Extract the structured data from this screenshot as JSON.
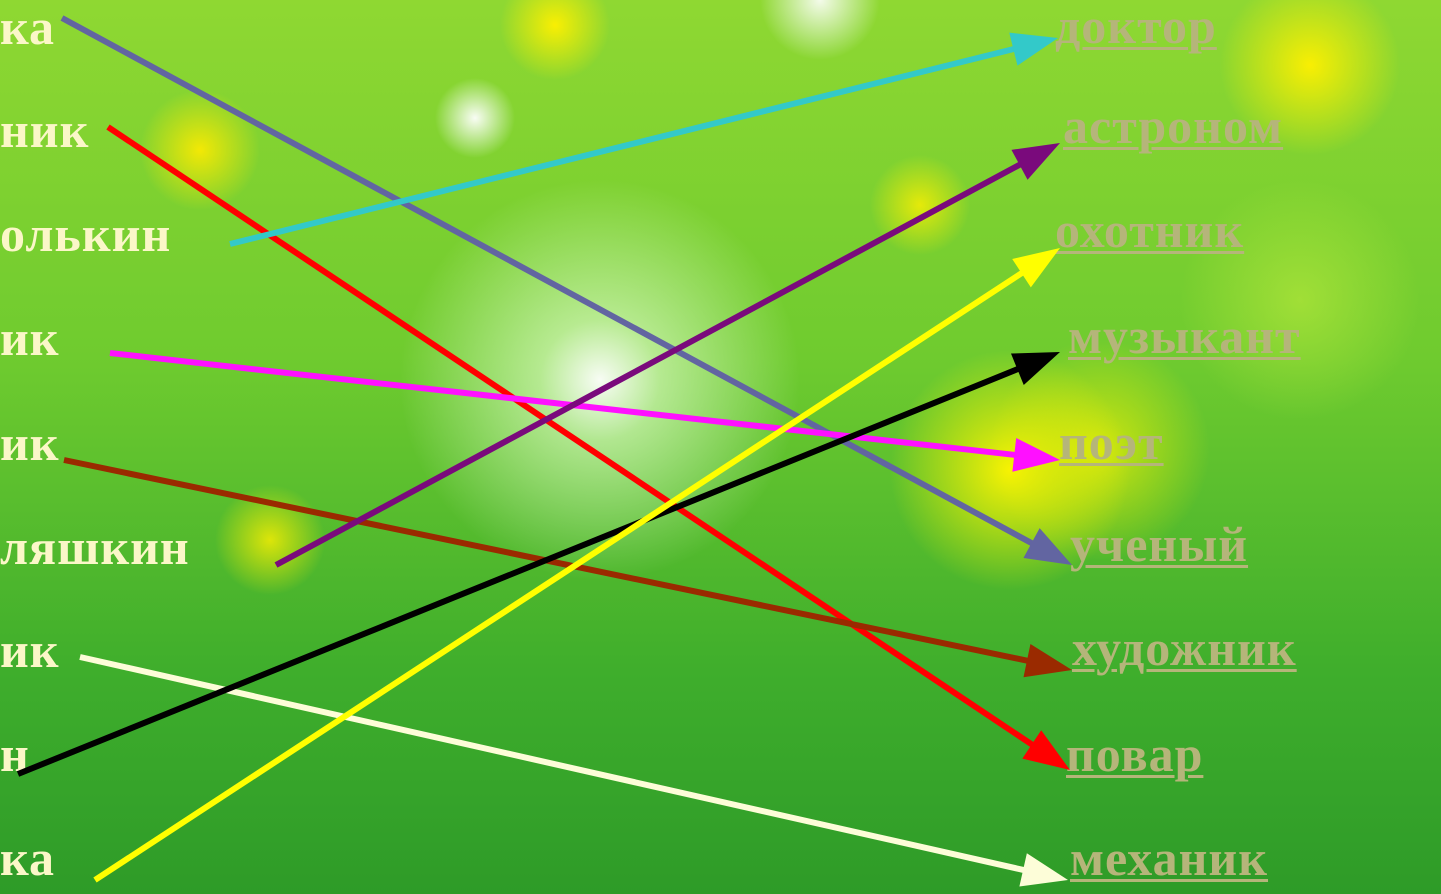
{
  "left_labels": [
    "ка",
    "ник",
    "олькин",
    "ик",
    "ик",
    "ляшкин",
    "ик",
    "н",
    "ка"
  ],
  "right_links": [
    "доктор",
    "астроном",
    "охотник",
    "музыкант",
    "поэт",
    "ученый",
    "художник",
    "повар",
    "механик"
  ],
  "connectors": [
    {
      "from": 0,
      "to": 5,
      "color": "#6265a1"
    },
    {
      "from": 1,
      "to": 7,
      "color": "#ff0000"
    },
    {
      "from": 2,
      "to": 0,
      "color": "#33c9c9"
    },
    {
      "from": 3,
      "to": 4,
      "color": "#ff10ff"
    },
    {
      "from": 4,
      "to": 6,
      "color": "#9a2a00"
    },
    {
      "from": 5,
      "to": 1,
      "color": "#7a0a7c"
    },
    {
      "from": 6,
      "to": 8,
      "color": "#fdfdd8"
    },
    {
      "from": 7,
      "to": 3,
      "color": "#000000"
    },
    {
      "from": 8,
      "to": 2,
      "color": "#ffff00"
    }
  ]
}
